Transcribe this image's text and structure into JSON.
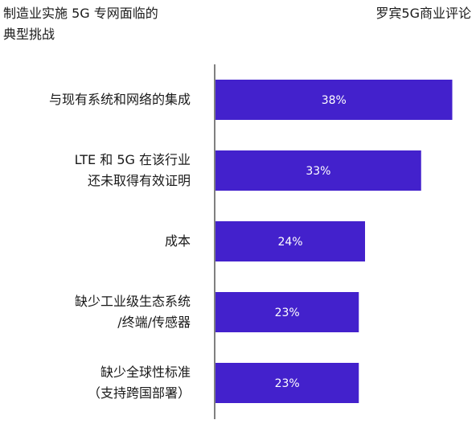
{
  "header": {
    "title_line1": "制造业实施 5G 专网面临的",
    "title_line2": "典型挑战",
    "source": "罗宾5G商业评论"
  },
  "colors": {
    "bar": "#4321cc",
    "axis": "#000000",
    "label_text": "#ffffff"
  },
  "chart_data": {
    "type": "bar",
    "orientation": "horizontal",
    "title": "制造业实施 5G 专网面临的典型挑战",
    "categories": [
      [
        "与现有系统和网络的集成"
      ],
      [
        "LTE 和 5G 在该行业",
        "还未取得有效证明"
      ],
      [
        "成本"
      ],
      [
        "缺少工业级生态系统",
        "/终端/传感器"
      ],
      [
        "缺少全球性标准",
        "（支持跨国部署）"
      ]
    ],
    "values": [
      38,
      33,
      24,
      23,
      23
    ],
    "value_labels": [
      "38%",
      "33%",
      "24%",
      "23%",
      "23%"
    ],
    "xlim": [
      0,
      40
    ],
    "grid": false,
    "legend": "none"
  }
}
